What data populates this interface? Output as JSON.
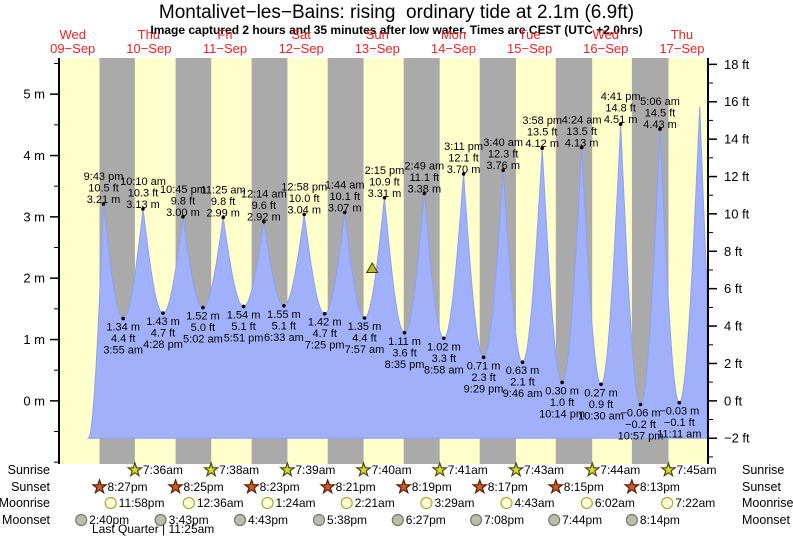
{
  "page": {
    "title": "Montalivet−les−Bains: rising  ordinary tide at 2.1m (6.9ft)",
    "subtitle": "Image captured 2 hours and 35 minutes after low water. Times are CEST (UTC +2.0hrs)"
  },
  "colors": {
    "day_band": "#ffffcc",
    "night_band": "#aaaaaa",
    "tide": "#a0b0fa",
    "tide_edge": "#8da0f0",
    "date_red": "#ee2222",
    "axis": "#000000",
    "marker_fill": "#b9bd3c",
    "marker_edge": "#3c3c00",
    "sunrise_fill": "#d8d83a",
    "sunrise_edge": "#4c4c00",
    "sunset_fill": "#cc5c28",
    "sunset_edge": "#581e00",
    "moonrise_fill": "#ffffd8",
    "moonrise_edge": "#a8a83a",
    "moonset_fill": "#bcbcac",
    "moonset_edge": "#78786a"
  },
  "days": [
    {
      "dow": "Wed",
      "date": "09−Sep",
      "noon_h": 12
    },
    {
      "dow": "Thu",
      "date": "10−Sep",
      "noon_h": 36
    },
    {
      "dow": "Fri",
      "date": "11−Sep",
      "noon_h": 60
    },
    {
      "dow": "Sat",
      "date": "12−Sep",
      "noon_h": 84
    },
    {
      "dow": "Sun",
      "date": "13−Sep",
      "noon_h": 108
    },
    {
      "dow": "Mon",
      "date": "14−Sep",
      "noon_h": 132
    },
    {
      "dow": "Tue",
      "date": "15−Sep",
      "noon_h": 156
    },
    {
      "dow": "Wed",
      "date": "16−Sep",
      "noon_h": 180
    },
    {
      "dow": "Thu",
      "date": "17−Sep",
      "noon_h": 204
    }
  ],
  "axes": {
    "left": {
      "values": [
        0,
        1,
        2,
        3,
        4,
        5
      ],
      "labels": [
        "0 m",
        "1 m",
        "2 m",
        "3 m",
        "4 m",
        "5 m"
      ],
      "minor_step": 0.5
    },
    "right": {
      "values_ft": [
        -2,
        0,
        2,
        4,
        6,
        8,
        10,
        12,
        14,
        16,
        18
      ],
      "labels": [
        "−2 ft",
        "0 ft",
        "2 ft",
        "4 ft",
        "6 ft",
        "8 ft",
        "10 ft",
        "12 ft",
        "14 ft",
        "16 ft",
        "18 ft"
      ],
      "minor_step_ft": 1
    }
  },
  "chart_data": {
    "type": "area",
    "title": "Montalivet−les−Bains: rising  ordinary tide at 2.1m (6.9ft)",
    "t_start_h": 8.0,
    "t_end_h": 211.9,
    "ylim_m": [
      -1.03,
      5.59
    ],
    "fill_floor_m": -0.61,
    "curve_start": {
      "t_h": 16.9,
      "m": -0.61
    },
    "curve_end": {
      "t_h": 215.3,
      "m": -0.1
    },
    "marker": {
      "t_h": 106.4,
      "m": 2.1
    },
    "night_bands": [
      [
        20.45,
        31.6
      ],
      [
        44.42,
        55.63
      ],
      [
        68.38,
        79.65
      ],
      [
        92.35,
        103.67
      ],
      [
        116.32,
        127.68
      ],
      [
        140.28,
        151.72
      ],
      [
        164.25,
        175.73
      ],
      [
        188.22,
        199.75
      ]
    ],
    "extremes": [
      {
        "kind": "high",
        "t_h": 21.717,
        "m": 3.21,
        "lines": [
          "9:43 pm",
          "10.5 ft",
          "3.21 m"
        ]
      },
      {
        "kind": "low",
        "t_h": 27.917,
        "m": 1.34,
        "lines": [
          "1.34 m",
          "4.4 ft",
          "3:55 am"
        ]
      },
      {
        "kind": "high",
        "t_h": 34.167,
        "m": 3.13,
        "lines": [
          "10:10 am",
          "10.3 ft",
          "3.13 m"
        ]
      },
      {
        "kind": "low",
        "t_h": 40.467,
        "m": 1.43,
        "lines": [
          "1.43 m",
          "4.7 ft",
          "4:28 pm"
        ]
      },
      {
        "kind": "high",
        "t_h": 46.75,
        "m": 3.0,
        "lines": [
          "10:45 pm",
          "9.8 ft",
          "3.00 m"
        ]
      },
      {
        "kind": "low",
        "t_h": 53.033,
        "m": 1.52,
        "lines": [
          "1.52 m",
          "5.0 ft",
          "5:02 am"
        ]
      },
      {
        "kind": "high",
        "t_h": 59.417,
        "m": 2.99,
        "lines": [
          "11:25 am",
          "9.8 ft",
          "2.99 m"
        ]
      },
      {
        "kind": "low",
        "t_h": 65.85,
        "m": 1.54,
        "lines": [
          "1.54 m",
          "5.1 ft",
          "5:51 pm"
        ]
      },
      {
        "kind": "high",
        "t_h": 72.233,
        "m": 2.92,
        "lines": [
          "12:14 am",
          "9.6 ft",
          "2.92 m"
        ]
      },
      {
        "kind": "low",
        "t_h": 78.55,
        "m": 1.55,
        "lines": [
          "1.55 m",
          "5.1 ft",
          "6:33 am"
        ]
      },
      {
        "kind": "high",
        "t_h": 84.967,
        "m": 3.04,
        "lines": [
          "12:58 pm",
          "10.0 ft",
          "3.04 m"
        ]
      },
      {
        "kind": "low",
        "t_h": 91.417,
        "m": 1.42,
        "lines": [
          "1.42 m",
          "4.7 ft",
          "7:25 pm"
        ]
      },
      {
        "kind": "high",
        "t_h": 97.733,
        "m": 3.07,
        "lines": [
          "1:44 am",
          "10.1 ft",
          "3.07 m"
        ]
      },
      {
        "kind": "low",
        "t_h": 103.95,
        "m": 1.35,
        "lines": [
          "1.35 m",
          "4.4 ft",
          "7:57 am"
        ]
      },
      {
        "kind": "high",
        "t_h": 110.25,
        "m": 3.31,
        "lines": [
          "2:15 pm",
          "10.9 ft",
          "3.31 m"
        ]
      },
      {
        "kind": "low",
        "t_h": 116.583,
        "m": 1.11,
        "lines": [
          "1.11 m",
          "3.6 ft",
          "8:35 pm"
        ]
      },
      {
        "kind": "high",
        "t_h": 122.817,
        "m": 3.38,
        "lines": [
          "2:49 am",
          "11.1 ft",
          "3.38 m"
        ]
      },
      {
        "kind": "low",
        "t_h": 128.967,
        "m": 1.02,
        "lines": [
          "1.02 m",
          "3.3 ft",
          "8:58 am"
        ]
      },
      {
        "kind": "high",
        "t_h": 135.183,
        "m": 3.7,
        "lines": [
          "3:11 pm",
          "12.1 ft",
          "3.70 m"
        ]
      },
      {
        "kind": "low",
        "t_h": 141.483,
        "m": 0.71,
        "lines": [
          "0.71 m",
          "2.3 ft",
          "9:29 pm"
        ]
      },
      {
        "kind": "high",
        "t_h": 147.667,
        "m": 3.76,
        "lines": [
          "3:40 am",
          "12.3 ft",
          "3.76 m"
        ]
      },
      {
        "kind": "low",
        "t_h": 153.767,
        "m": 0.63,
        "lines": [
          "0.63 m",
          "2.1 ft",
          "9:46 am"
        ]
      },
      {
        "kind": "high",
        "t_h": 159.967,
        "m": 4.12,
        "lines": [
          "3:58 pm",
          "13.5 ft",
          "4.12 m"
        ]
      },
      {
        "kind": "low",
        "t_h": 166.233,
        "m": 0.3,
        "lines": [
          "0.30 m",
          "1.0 ft",
          "10:14 pm"
        ]
      },
      {
        "kind": "high",
        "t_h": 172.4,
        "m": 4.13,
        "lines": [
          "4:24 am",
          "13.5 ft",
          "4.13 m"
        ]
      },
      {
        "kind": "low",
        "t_h": 178.5,
        "m": 0.27,
        "lines": [
          "0.27 m",
          "0.9 ft",
          "10:30 am"
        ]
      },
      {
        "kind": "high",
        "t_h": 184.683,
        "m": 4.51,
        "lines": [
          "4:41 pm",
          "14.8 ft",
          "4.51 m"
        ]
      },
      {
        "kind": "low",
        "t_h": 190.95,
        "m": -0.06,
        "lines": [
          "−0.06 m",
          "−0.2 ft",
          "10:57 pm"
        ]
      },
      {
        "kind": "high",
        "t_h": 197.1,
        "m": 4.43,
        "lines": [
          "5:06 am",
          "14.5 ft",
          "4.43 m"
        ]
      },
      {
        "kind": "low",
        "t_h": 203.183,
        "m": -0.03,
        "lines": [
          "−0.03 m",
          "−0.1 ft",
          "11:11 am"
        ]
      },
      {
        "kind": "high",
        "t_h": 209.6,
        "m": 4.8,
        "lines": []
      }
    ]
  },
  "sun_moon": {
    "rows": [
      {
        "name": "sunrise",
        "label": "Sunrise",
        "icon": "sunrise-star",
        "entries": [
          {
            "t_h": 31.6,
            "label": "7:36am"
          },
          {
            "t_h": 55.633,
            "label": "7:38am"
          },
          {
            "t_h": 79.65,
            "label": "7:39am"
          },
          {
            "t_h": 103.667,
            "label": "7:40am"
          },
          {
            "t_h": 127.683,
            "label": "7:41am"
          },
          {
            "t_h": 151.717,
            "label": "7:43am"
          },
          {
            "t_h": 175.733,
            "label": "7:44am"
          },
          {
            "t_h": 199.75,
            "label": "7:45am"
          }
        ]
      },
      {
        "name": "sunset",
        "label": "Sunset",
        "icon": "sunset-star",
        "entries": [
          {
            "t_h": 20.45,
            "label": "8:27pm"
          },
          {
            "t_h": 44.417,
            "label": "8:25pm"
          },
          {
            "t_h": 68.383,
            "label": "8:23pm"
          },
          {
            "t_h": 92.35,
            "label": "8:21pm"
          },
          {
            "t_h": 116.317,
            "label": "8:19pm"
          },
          {
            "t_h": 140.283,
            "label": "8:17pm"
          },
          {
            "t_h": 164.25,
            "label": "8:15pm"
          },
          {
            "t_h": 188.217,
            "label": "8:13pm"
          }
        ]
      },
      {
        "name": "moonrise",
        "label": "Moonrise",
        "icon": "moonrise-circle",
        "entries": [
          {
            "t_h": 23.967,
            "label": "11:58pm"
          },
          {
            "t_h": 48.6,
            "label": "12:36am"
          },
          {
            "t_h": 73.4,
            "label": "1:24am"
          },
          {
            "t_h": 98.35,
            "label": "2:21am"
          },
          {
            "t_h": 123.483,
            "label": "3:29am"
          },
          {
            "t_h": 148.717,
            "label": "4:43am"
          },
          {
            "t_h": 174.033,
            "label": "6:02am"
          },
          {
            "t_h": 199.367,
            "label": "7:22am"
          }
        ]
      },
      {
        "name": "moonset",
        "label": "Moonset",
        "icon": "moonset-circle",
        "entries": [
          {
            "t_h": 14.667,
            "label": "2:40pm"
          },
          {
            "t_h": 39.717,
            "label": "3:43pm"
          },
          {
            "t_h": 64.717,
            "label": "4:43pm"
          },
          {
            "t_h": 89.633,
            "label": "5:38pm"
          },
          {
            "t_h": 114.45,
            "label": "6:27pm"
          },
          {
            "t_h": 139.133,
            "label": "7:08pm"
          },
          {
            "t_h": 163.733,
            "label": "7:44pm"
          },
          {
            "t_h": 188.233,
            "label": "8:14pm"
          }
        ]
      }
    ],
    "footnote": "Last Quarter | 11:25am"
  }
}
